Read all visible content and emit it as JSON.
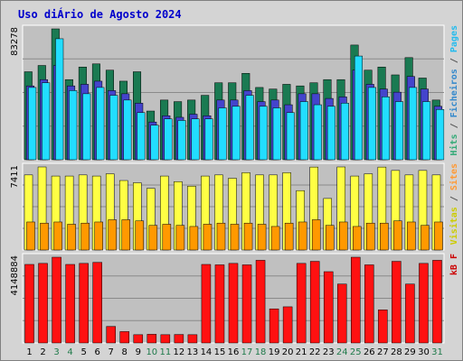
{
  "chart_data": {
    "type": "bar",
    "title": "Uso diÁrio de Agosto 2024",
    "categories": [
      "1",
      "2",
      "3",
      "4",
      "5",
      "6",
      "7",
      "8",
      "9",
      "10",
      "11",
      "12",
      "13",
      "14",
      "15",
      "16",
      "17",
      "18",
      "19",
      "20",
      "21",
      "22",
      "23",
      "24",
      "25",
      "26",
      "27",
      "28",
      "29",
      "30",
      "31"
    ],
    "weekend_days": [
      "3",
      "4",
      "10",
      "11",
      "17",
      "18",
      "24",
      "25",
      "31"
    ],
    "panels": [
      {
        "id": "hits",
        "ymax_label": "83278",
        "ymax": 83278,
        "right_label_parts": [
          {
            "text": "Hits",
            "color": "#33aa77"
          },
          {
            "text": " / ",
            "color": "#555555"
          },
          {
            "text": "Ficheiros",
            "color": "#3388cc"
          },
          {
            "text": " / ",
            "color": "#555555"
          },
          {
            "text": "Pages",
            "color": "#22bbee"
          }
        ],
        "series": [
          {
            "name": "Hits",
            "color": "#1a7a52",
            "values": [
              56000,
              60000,
              83278,
              51000,
              59000,
              61000,
              57000,
              50000,
              56000,
              31000,
              38000,
              37000,
              38000,
              41000,
              49000,
              49000,
              55000,
              46000,
              45000,
              48000,
              47000,
              49000,
              51000,
              51000,
              73000,
              57000,
              59000,
              54000,
              65000,
              52000,
              38000
            ]
          },
          {
            "name": "Ficheiros",
            "color": "#4444cc",
            "values": [
              47000,
              51000,
              60000,
              47000,
              48000,
              50000,
              44000,
              42000,
              36000,
              24000,
              28000,
              27000,
              29000,
              28000,
              38000,
              38000,
              44000,
              37000,
              38000,
              35000,
              42000,
              42000,
              39000,
              40000,
              57000,
              48000,
              45000,
              43000,
              53000,
              45000,
              34000
            ]
          },
          {
            "name": "Pages",
            "color": "#22ddff",
            "values": [
              46000,
              49000,
              77000,
              44000,
              42000,
              46000,
              41000,
              38000,
              30000,
              22000,
              26000,
              25000,
              26000,
              26000,
              33000,
              34000,
              41000,
              34000,
              33000,
              30000,
              37000,
              35000,
              34000,
              36000,
              66000,
              46000,
              40000,
              37000,
              46000,
              37000,
              32000
            ]
          }
        ]
      },
      {
        "id": "visits",
        "ymax_label": "7411",
        "ymax": 7411,
        "right_label_parts": [
          {
            "text": "Visitas",
            "color": "#cccc00"
          },
          {
            "text": " / ",
            "color": "#555555"
          },
          {
            "text": "Sites",
            "color": "#ff9933"
          }
        ],
        "series": [
          {
            "name": "Visitas",
            "color": "#ffff44",
            "values": [
              6700,
              7411,
              6600,
              6600,
              6700,
              6600,
              6800,
              6200,
              6000,
              5500,
              6600,
              6100,
              5700,
              6600,
              6700,
              6400,
              6900,
              6700,
              6700,
              6900,
              5300,
              7400,
              4600,
              7411,
              6600,
              6800,
              7400,
              7100,
              6700,
              7100,
              6700
            ]
          },
          {
            "name": "Sites",
            "color": "#ff9900",
            "values": [
              2500,
              2400,
              2500,
              2300,
              2400,
              2500,
              2700,
              2700,
              2600,
              2200,
              2300,
              2200,
              2100,
              2300,
              2400,
              2300,
              2400,
              2300,
              2100,
              2400,
              2500,
              2700,
              2200,
              2500,
              2100,
              2400,
              2400,
              2600,
              2500,
              2200,
              2500
            ]
          }
        ]
      },
      {
        "id": "kbf",
        "ymax_label": "4148884",
        "ymax": 4148884,
        "right_label_parts": [
          {
            "text": "kB F",
            "color": "#cc0000"
          }
        ],
        "series": [
          {
            "name": "kB F",
            "color": "#ff1111",
            "values": [
              3800000,
              3850000,
              4148884,
              3800000,
              3850000,
              3900000,
              800000,
              550000,
              400000,
              420000,
              400000,
              410000,
              400000,
              3800000,
              3780000,
              3850000,
              3780000,
              4000000,
              1650000,
              1750000,
              3850000,
              3950000,
              3450000,
              2850000,
              4148884,
              3780000,
              1600000,
              3950000,
              2850000,
              3850000,
              4000000
            ]
          }
        ]
      }
    ],
    "colors": {
      "background": "#d4d4d4",
      "plot_bg": "#c0c0c0",
      "title": "#0000cc",
      "weekday_label": "#000000",
      "weekend_label": "#1f7a4a",
      "grid": "#8a8a8a",
      "bar_outline": "#000000"
    }
  }
}
